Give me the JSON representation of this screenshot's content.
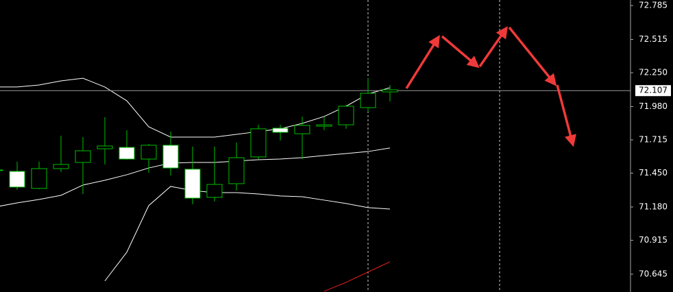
{
  "chart_data": {
    "type": "candlestick",
    "ylim": [
      70.503,
      72.829
    ],
    "yticks": [
      72.785,
      72.515,
      {
        "value": 72.25,
        "label": "72.250"
      },
      {
        "value": 71.98,
        "label": "71.980"
      },
      71.715,
      {
        "value": 71.45,
        "label": "71.450"
      },
      {
        "value": 71.18,
        "label": "71.180"
      },
      70.915,
      70.645
    ],
    "current_price": 72.107,
    "up_color": "#00c000",
    "down_fill": "#ffffff",
    "open": [
      71.475,
      71.464,
      71.328,
      71.486,
      71.535,
      71.644,
      71.655,
      71.562,
      71.672,
      71.481,
      71.257,
      71.366,
      71.579,
      71.808,
      71.764,
      71.824,
      71.835,
      71.972,
      72.097
    ],
    "high": [
      71.486,
      71.541,
      71.541,
      71.748,
      71.737,
      71.895,
      71.792,
      71.682,
      71.781,
      71.661,
      71.661,
      71.693,
      71.835,
      71.835,
      71.901,
      71.901,
      71.994,
      72.206,
      72.152
    ],
    "low": [
      71.464,
      71.317,
      71.322,
      71.459,
      71.284,
      71.519,
      71.557,
      71.453,
      71.431,
      71.202,
      71.224,
      71.311,
      71.562,
      71.71,
      71.562,
      71.792,
      71.803,
      71.939,
      72.021
    ],
    "close": [
      71.47,
      71.339,
      71.486,
      71.519,
      71.628,
      71.666,
      71.562,
      71.672,
      71.491,
      71.251,
      71.36,
      71.573,
      71.803,
      71.775,
      71.83,
      71.835,
      71.983,
      72.086,
      72.114
    ],
    "lines": [
      {
        "color": "#ffffff",
        "values": [
          72.136,
          72.136,
          72.152,
          72.185,
          72.206,
          72.136,
          72.026,
          71.819,
          71.737,
          71.737,
          71.737,
          71.759,
          71.781,
          71.803,
          71.846,
          71.901,
          71.983,
          72.081,
          72.13
        ]
      },
      {
        "color": "#ffffff",
        "values": [
          71.18,
          71.213,
          71.24,
          71.273,
          71.355,
          71.393,
          71.437,
          71.491,
          71.53,
          71.535,
          71.535,
          71.546,
          71.557,
          71.562,
          71.573,
          71.59,
          71.606,
          71.622,
          71.65
        ]
      },
      {
        "color": "#ffffff",
        "values": [
          null,
          null,
          null,
          null,
          null,
          70.591,
          70.82,
          71.191,
          71.344,
          71.311,
          71.295,
          71.295,
          71.284,
          71.268,
          71.262,
          71.235,
          71.208,
          71.175,
          71.164
        ]
      },
      {
        "color": "#e0201c",
        "values": [
          null,
          null,
          null,
          null,
          null,
          null,
          null,
          null,
          null,
          null,
          null,
          null,
          null,
          null,
          null,
          70.509,
          70.58,
          70.662,
          70.744
        ]
      }
    ]
  }
}
